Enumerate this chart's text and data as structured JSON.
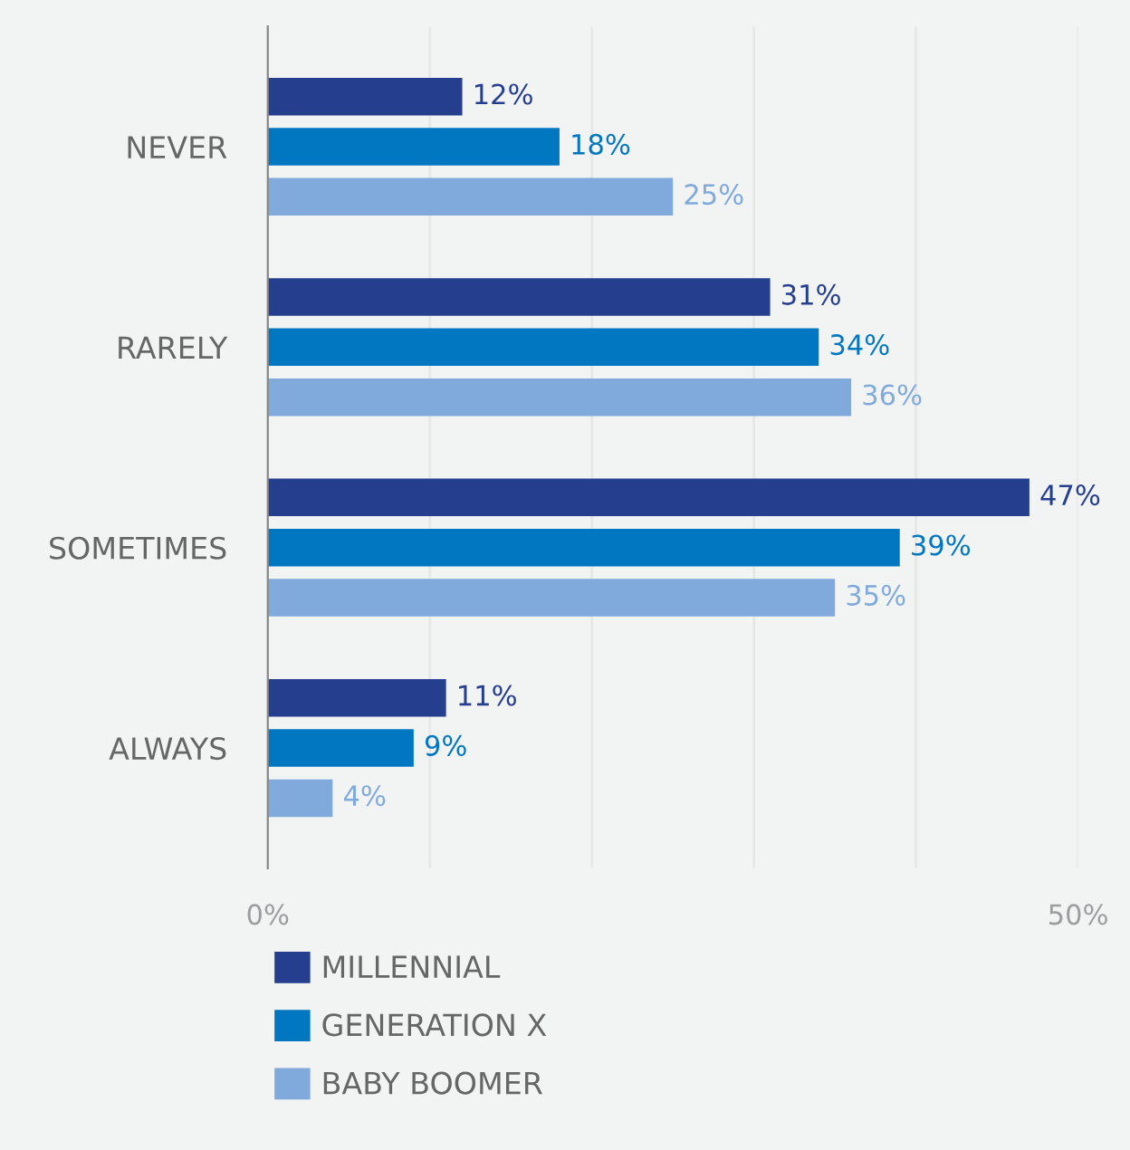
{
  "chart_data": {
    "type": "bar",
    "orientation": "horizontal",
    "categories": [
      "NEVER",
      "RARELY",
      "SOMETIMES",
      "ALWAYS"
    ],
    "series": [
      {
        "name": "MILLENNIAL",
        "color": "#253f8e",
        "values": [
          12,
          31,
          47,
          11
        ],
        "value_labels": [
          "12%",
          "31%",
          "47%",
          "11%"
        ]
      },
      {
        "name": "GENERATION X",
        "color": "#0077c0",
        "values": [
          18,
          34,
          39,
          9
        ],
        "value_labels": [
          "18%",
          "34%",
          "39%",
          "9%"
        ]
      },
      {
        "name": "BABY BOOMER",
        "color": "#7faadb",
        "values": [
          25,
          36,
          35,
          4
        ],
        "value_labels": [
          "25%",
          "36%",
          "35%",
          "4%"
        ]
      }
    ],
    "xlim": [
      0,
      50
    ],
    "xticks": [
      {
        "value": 0,
        "label": "0%"
      },
      {
        "value": 10,
        "label": null
      },
      {
        "value": 20,
        "label": null
      },
      {
        "value": 30,
        "label": null
      },
      {
        "value": 40,
        "label": null
      },
      {
        "value": 50,
        "label": "50%"
      }
    ],
    "grid": "x",
    "legend": "bottom"
  }
}
